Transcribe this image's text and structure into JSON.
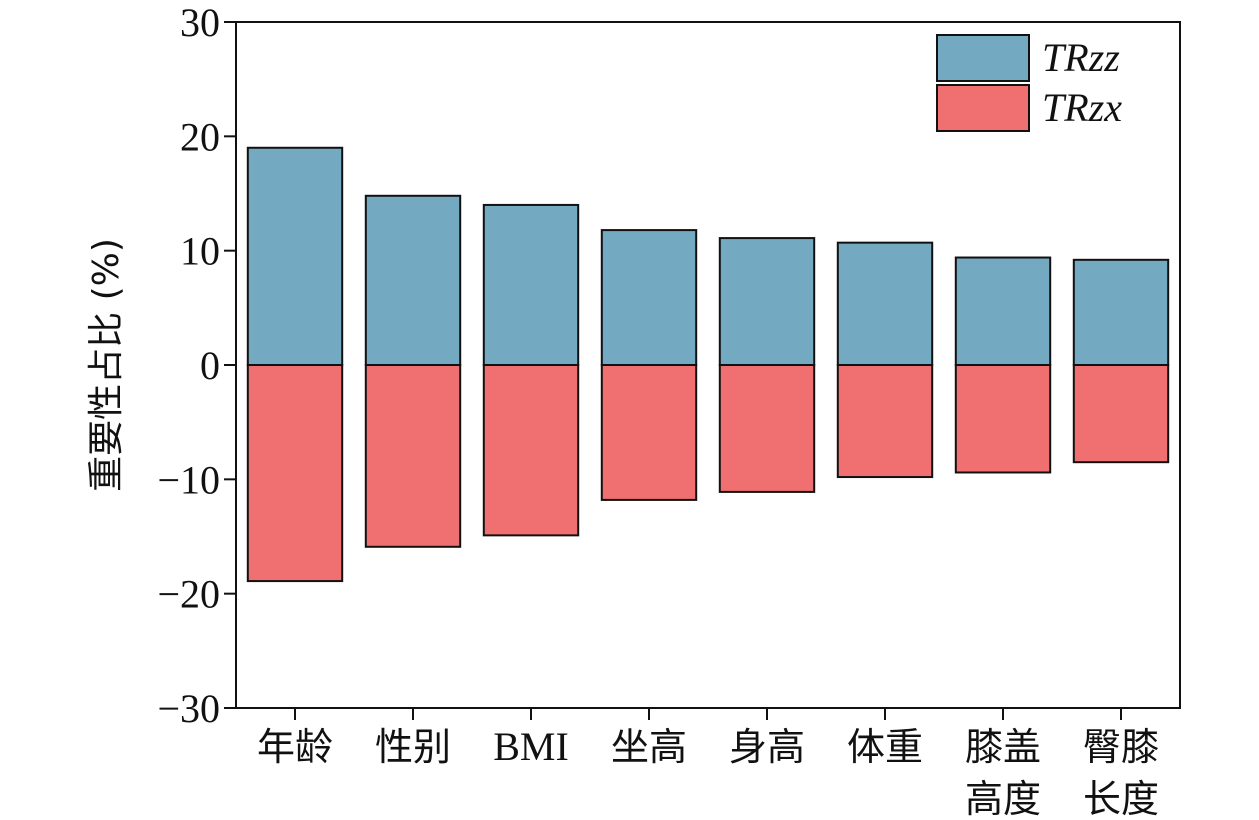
{
  "chart_data": {
    "type": "bar",
    "categories": [
      [
        "年龄"
      ],
      [
        "性别"
      ],
      [
        "BMI"
      ],
      [
        "坐高"
      ],
      [
        "身高"
      ],
      [
        "体重"
      ],
      [
        "膝盖",
        "高度"
      ],
      [
        "臀膝",
        "长度"
      ]
    ],
    "series": [
      {
        "name": "TRzz",
        "color": "#73a9c1",
        "values": [
          19.0,
          14.8,
          14.0,
          11.8,
          11.1,
          10.7,
          9.4,
          9.2
        ]
      },
      {
        "name": "TRzx",
        "color": "#f06f70",
        "values": [
          -18.9,
          -15.9,
          -14.9,
          -11.8,
          -11.1,
          -9.8,
          -9.4,
          -8.5
        ]
      }
    ],
    "ylabel": "重要性占比 (%)",
    "ylim": [
      -30,
      30
    ],
    "yticks": [
      30,
      20,
      10,
      0,
      -10,
      -20,
      -30
    ],
    "ytick_labels": [
      "30",
      "20",
      "10",
      "0",
      "−10",
      "−20",
      "−30"
    ],
    "legend_position": "top-right",
    "grid": false
  }
}
